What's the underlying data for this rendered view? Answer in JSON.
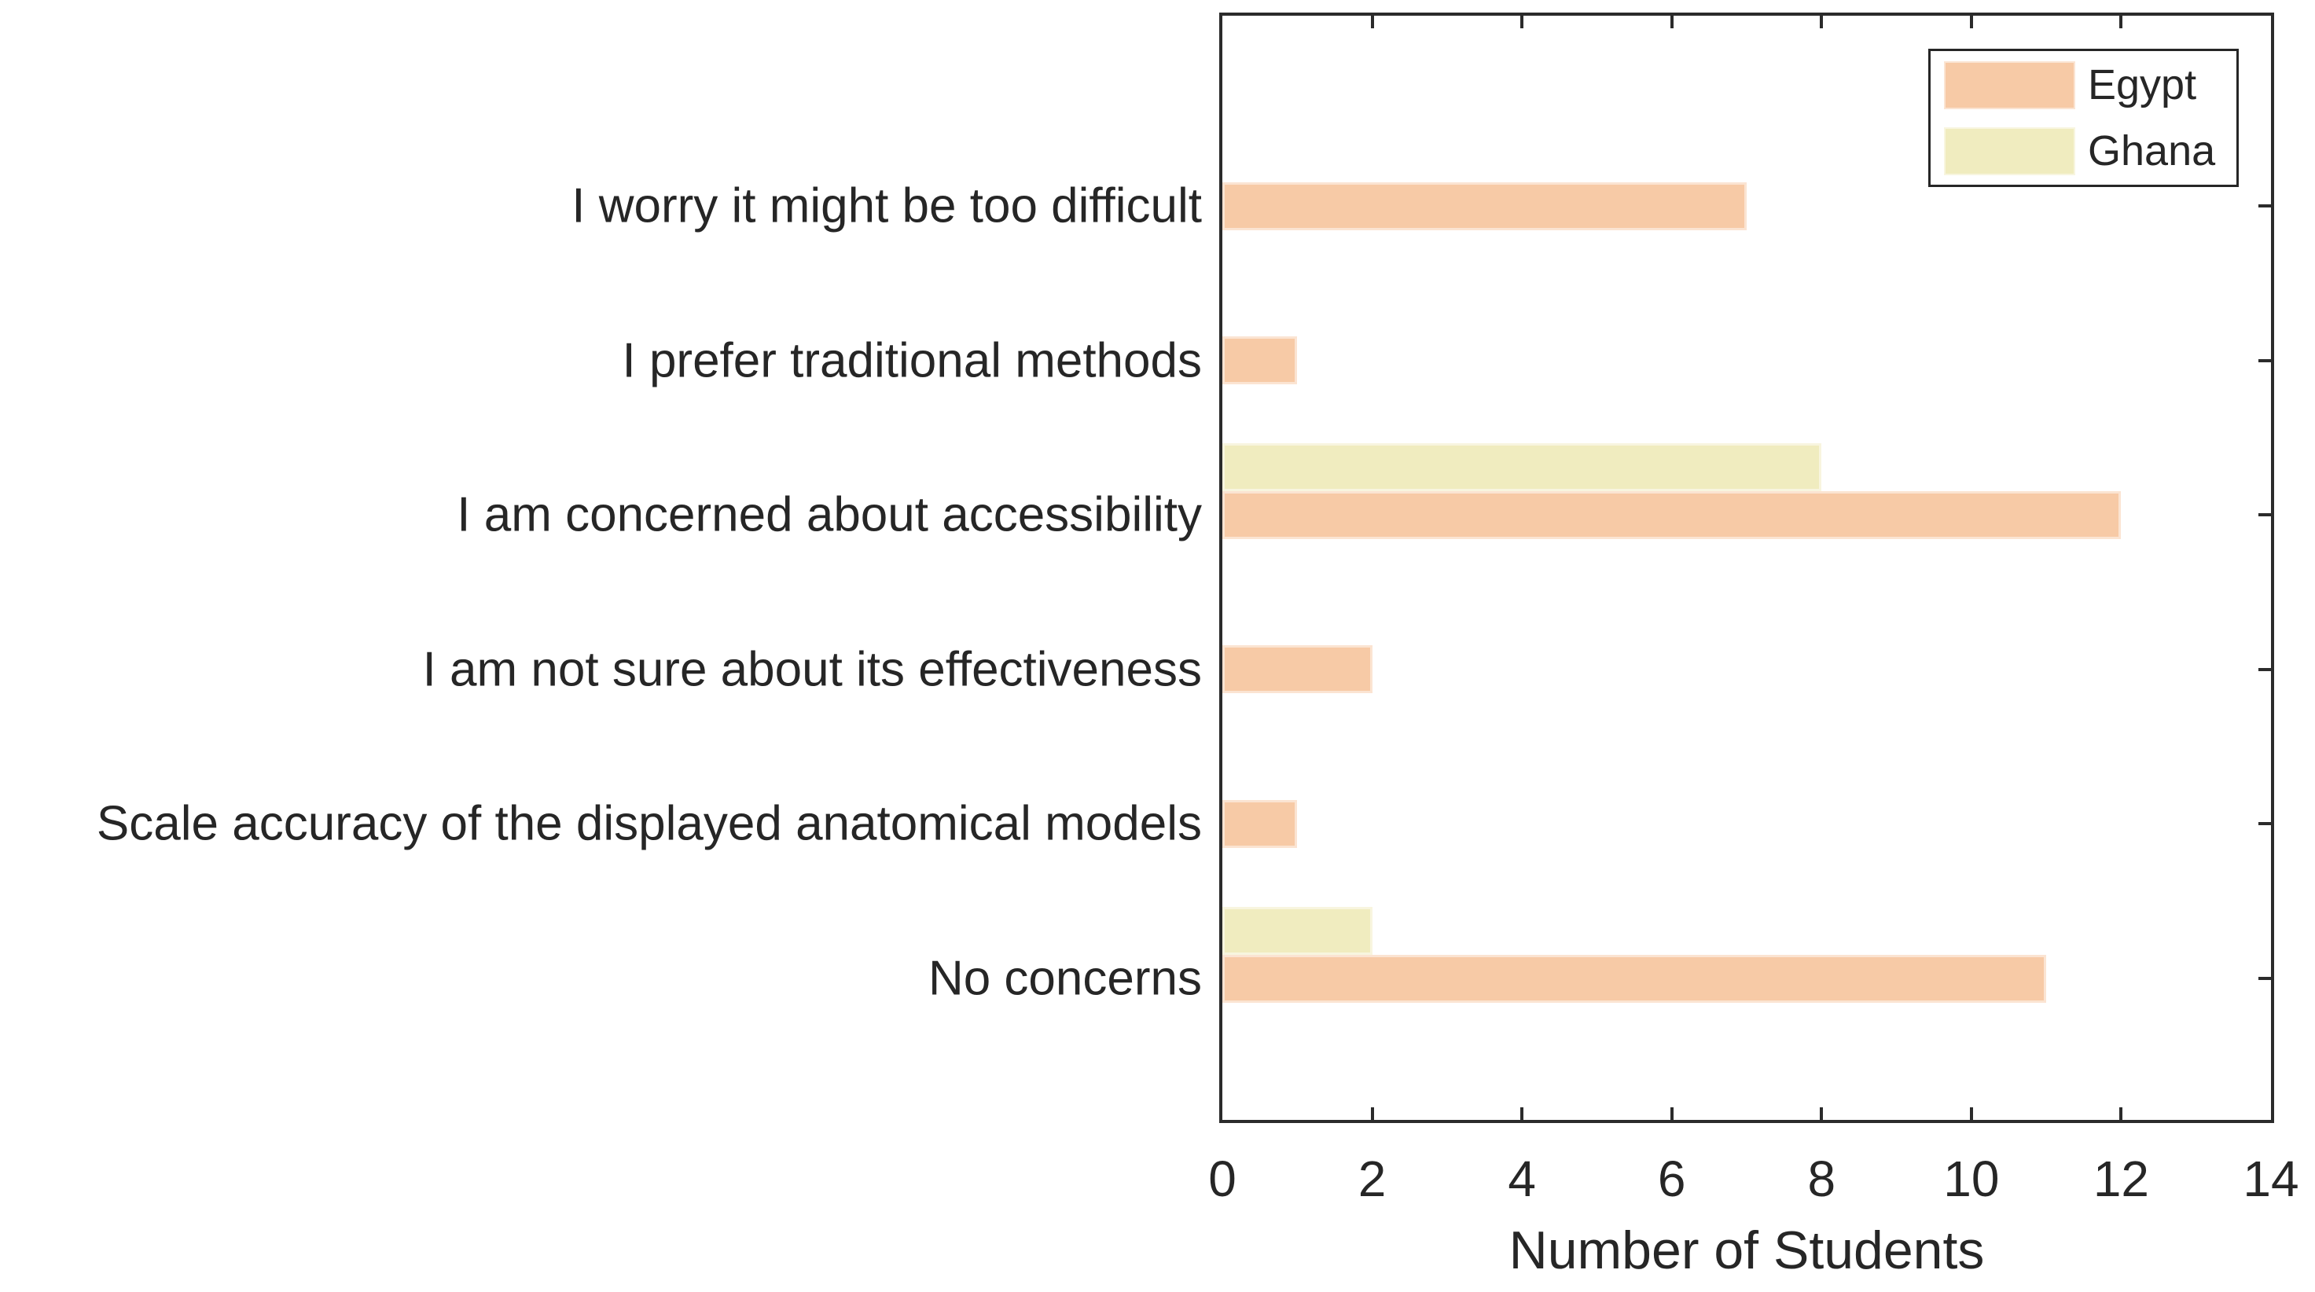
{
  "chart_data": {
    "type": "bar",
    "orientation": "horizontal",
    "title": "",
    "xlabel": "Number of Students",
    "xlim": [
      0,
      14
    ],
    "xticks": [
      0,
      2,
      4,
      6,
      8,
      10,
      12,
      14
    ],
    "grid": false,
    "axis_color": "#2b2b2b",
    "text_color": "#262626",
    "categories": [
      "I worry it might be too difficult",
      "I prefer traditional methods",
      "I am concerned about accessibility",
      "I am not sure about its effectiveness",
      "Scale accuracy of the displayed anatomical models",
      "No concerns"
    ],
    "series": [
      {
        "name": "Egypt",
        "color": "#F7CAA6",
        "edge_color": "#FBE4D2",
        "values": [
          7,
          1,
          12,
          2,
          1,
          11
        ]
      },
      {
        "name": "Ghana",
        "color": "#F0ECBF",
        "edge_color": "#F8F5DF",
        "values": [
          0,
          0,
          8,
          0,
          0,
          2
        ]
      }
    ],
    "legend": {
      "position": "top-right",
      "entries": [
        "Egypt",
        "Ghana"
      ]
    }
  }
}
